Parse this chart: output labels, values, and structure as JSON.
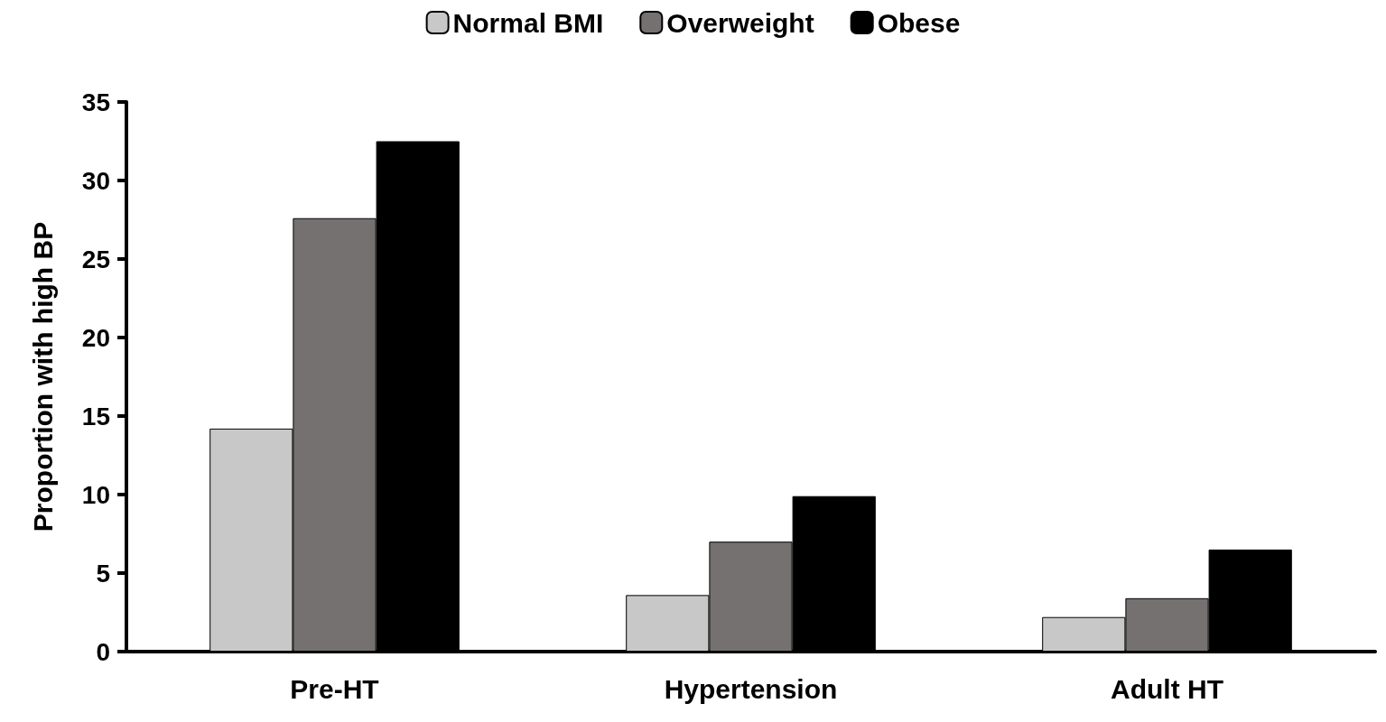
{
  "chart_data": {
    "type": "bar",
    "ylabel": "Proportion with high BP",
    "categories": [
      "Pre-HT",
      "Hypertension",
      "Adult HT"
    ],
    "series": [
      {
        "name": "Normal BMI",
        "color": "#c8c8c8",
        "values": [
          14.2,
          3.6,
          2.2
        ]
      },
      {
        "name": "Overweight",
        "color": "#767171",
        "values": [
          27.6,
          7.0,
          3.4
        ]
      },
      {
        "name": "Obese",
        "color": "#000000",
        "values": [
          32.5,
          9.9,
          6.5
        ]
      }
    ],
    "ylim": [
      0,
      35
    ],
    "yticks": [
      0,
      5,
      10,
      15,
      20,
      25,
      30,
      35
    ],
    "grid": false,
    "legend": "top"
  }
}
